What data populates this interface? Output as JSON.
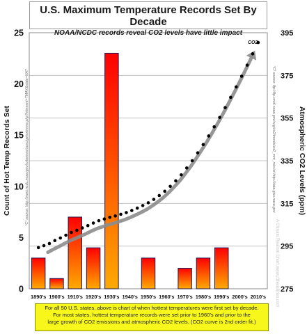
{
  "chart_data": {
    "type": "bar",
    "title": "U.S. Maximum Temperature Records Set By Decade",
    "subtitle": "NOAA/NCDC records reveal CO2 levels have little impact",
    "categories": [
      "1890's",
      "1900's",
      "1910's",
      "1920's",
      "1930's",
      "1940's",
      "1950's",
      "1960's",
      "1970's",
      "1980's",
      "1990's",
      "2000's",
      "2010's"
    ],
    "series": [
      {
        "values": [
          3,
          1,
          7,
          4,
          23,
          0,
          3,
          0,
          2,
          3,
          4,
          0,
          0
        ]
      }
    ],
    "ylabel": "Count of Hot Temp Records Set",
    "ylabel_right": "Atmospheric CO2 Levels (ppm)",
    "ylim": [
      0,
      25
    ],
    "yticks": [
      "0",
      "5",
      "10",
      "15",
      "20",
      "25"
    ],
    "ylim_right": [
      275,
      395
    ],
    "yticks_right": [
      "275",
      "295",
      "315",
      "335",
      "355",
      "375",
      "395"
    ],
    "co2_label": "CO2",
    "co2_trend": {
      "x": [
        0,
        0.3,
        0.6,
        0.9,
        1.2,
        1.5,
        1.8,
        2.1,
        2.4,
        2.7,
        3.0,
        3.3,
        3.6,
        3.9,
        4.2,
        4.5,
        4.8,
        5.1,
        5.4,
        5.7,
        6.0,
        6.3,
        6.6,
        6.9,
        7.2,
        7.5,
        7.8,
        8.1,
        8.4,
        8.7,
        9.0,
        9.3,
        9.6,
        9.9,
        10.2,
        10.5,
        10.8,
        11.1,
        11.4,
        11.7,
        12.0
      ],
      "y": [
        294.3,
        295.2,
        296.2,
        297.6,
        298.8,
        300.1,
        301.4,
        302.4,
        303.5,
        304.6,
        305.8,
        306.9,
        307.7,
        308.5,
        309.1,
        309.9,
        310.7,
        311.7,
        312.8,
        314.0,
        315.3,
        316.9,
        318.7,
        320.7,
        323.0,
        325.6,
        328.4,
        331.6,
        335.0,
        338.7,
        342.6,
        346.6,
        350.9,
        355.3,
        359.9,
        364.7,
        369.6,
        374.6,
        379.8,
        385.1,
        390.4
      ]
    },
    "legend": null,
    "grid": true
  },
  "side_notes": {
    "left": "°C³ source: http://www.ncdc.noaa.gov/extremes/scec/getextreme.php?element=TMAX&state=NAT",
    "right": "°C³ source: ftp://ftp.cmdl.noaa.gov/ccg/co2/trends/co2_mm_mlo.txt  http://data.giss.nasa.gov",
    "watermark": "A Climate Realism Chart www.c3headlines.com"
  },
  "footer": {
    "line1": "For all 50 U.S. states, above is chart of when hottest temperatures were first set by decade.",
    "line2": "For most states, hottest temperature records were set prior to 1960's and prior to the",
    "line3": "large growth of CO2 emissions and atmospheric CO2 levels. (CO2 curve is 2nd order fit.)"
  },
  "colors": {
    "bar_top": "#ff0000",
    "bar_bottom": "#ffaa00",
    "bar_border": "#1a1a5a",
    "co2_dots": "#000000",
    "arrow": "#8c8c8c",
    "footer_bg": "#f7f71c"
  }
}
